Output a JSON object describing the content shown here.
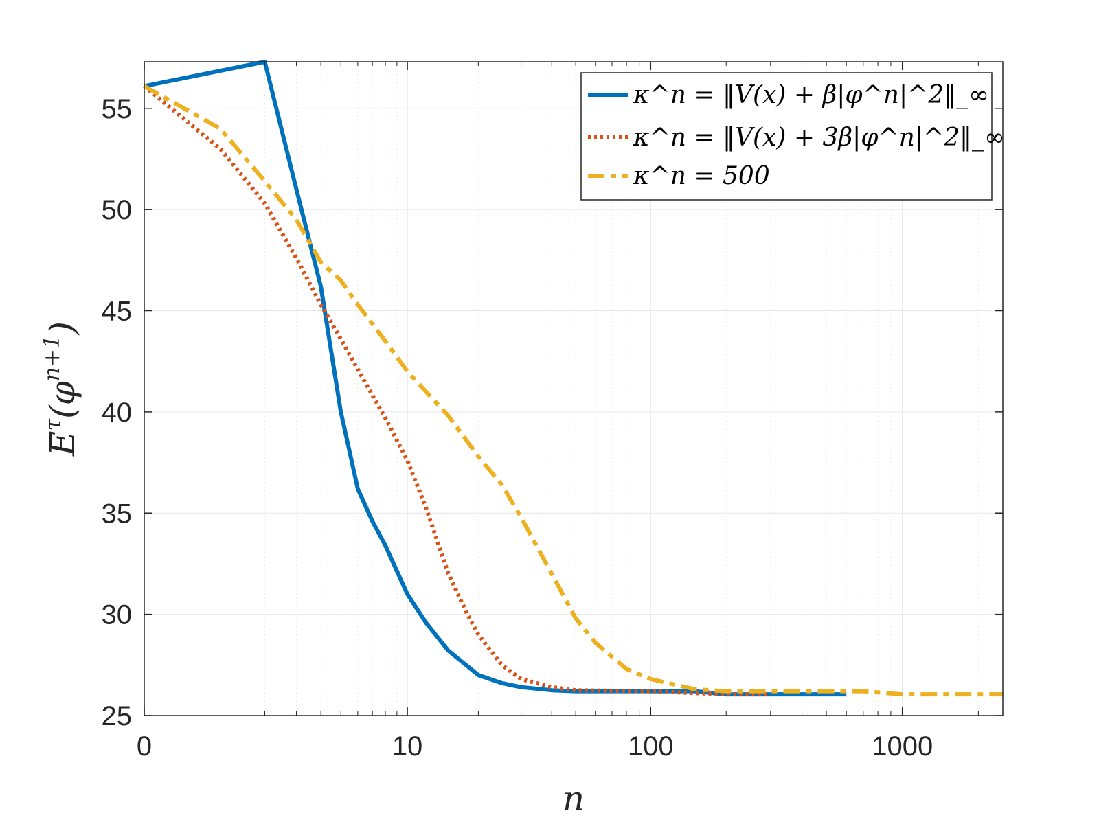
{
  "chart_data": {
    "type": "line",
    "xlabel": "n",
    "ylabel": "E^τ(φ^{n+1})",
    "x_scale": "log(1+n)",
    "xlim": [
      0,
      2500
    ],
    "ylim": [
      25,
      57.3
    ],
    "x_ticks": [
      0,
      10,
      100,
      1000
    ],
    "x_tick_labels": [
      "0",
      "10",
      "100",
      "1000"
    ],
    "y_ticks": [
      25,
      30,
      35,
      40,
      45,
      50,
      55
    ],
    "y_tick_labels": [
      "25",
      "30",
      "35",
      "40",
      "45",
      "50",
      "55"
    ],
    "grid": true,
    "legend_position": "top-right",
    "series": [
      {
        "name": "κ^n = ‖V(x) + β|φ^n|^2‖_∞",
        "color": "#0072BD",
        "style": "solid",
        "points": [
          [
            0,
            56.1
          ],
          [
            2,
            57.3
          ],
          [
            3,
            51.0
          ],
          [
            4,
            46.2
          ],
          [
            5,
            40.0
          ],
          [
            6,
            36.2
          ],
          [
            7,
            34.6
          ],
          [
            8,
            33.4
          ],
          [
            10,
            31.0
          ],
          [
            12,
            29.6
          ],
          [
            15,
            28.2
          ],
          [
            20,
            27.0
          ],
          [
            25,
            26.6
          ],
          [
            30,
            26.4
          ],
          [
            40,
            26.25
          ],
          [
            50,
            26.2
          ],
          [
            100,
            26.2
          ],
          [
            150,
            26.2
          ],
          [
            200,
            26.05
          ],
          [
            300,
            26.05
          ],
          [
            600,
            26.05
          ]
        ]
      },
      {
        "name": "κ^n = ‖V(x) + 3β|φ^n|^2‖_∞",
        "color": "#D95319",
        "style": "dotted",
        "points": [
          [
            0,
            56.1
          ],
          [
            1,
            53.0
          ],
          [
            2,
            50.3
          ],
          [
            3,
            47.6
          ],
          [
            4,
            45.3
          ],
          [
            5,
            43.6
          ],
          [
            6,
            42.1
          ],
          [
            8,
            39.7
          ],
          [
            10,
            37.6
          ],
          [
            12,
            35.3
          ],
          [
            15,
            32.0
          ],
          [
            18,
            30.0
          ],
          [
            20,
            29.0
          ],
          [
            25,
            27.5
          ],
          [
            30,
            26.8
          ],
          [
            40,
            26.4
          ],
          [
            50,
            26.25
          ],
          [
            100,
            26.2
          ],
          [
            200,
            26.05
          ],
          [
            300,
            26.05
          ]
        ]
      },
      {
        "name": "κ^n = 500",
        "color": "#EDB120",
        "style": "dashed",
        "points": [
          [
            0,
            56.1
          ],
          [
            1,
            54.0
          ],
          [
            2,
            51.4
          ],
          [
            3,
            49.5
          ],
          [
            4,
            47.4
          ],
          [
            5,
            46.5
          ],
          [
            6,
            45.3
          ],
          [
            8,
            43.5
          ],
          [
            10,
            42.0
          ],
          [
            15,
            39.8
          ],
          [
            20,
            37.8
          ],
          [
            25,
            36.4
          ],
          [
            30,
            34.8
          ],
          [
            40,
            32.0
          ],
          [
            50,
            29.8
          ],
          [
            60,
            28.6
          ],
          [
            80,
            27.3
          ],
          [
            100,
            26.8
          ],
          [
            150,
            26.3
          ],
          [
            200,
            26.2
          ],
          [
            500,
            26.2
          ],
          [
            700,
            26.2
          ],
          [
            1000,
            26.05
          ],
          [
            2500,
            26.05
          ]
        ]
      }
    ]
  }
}
